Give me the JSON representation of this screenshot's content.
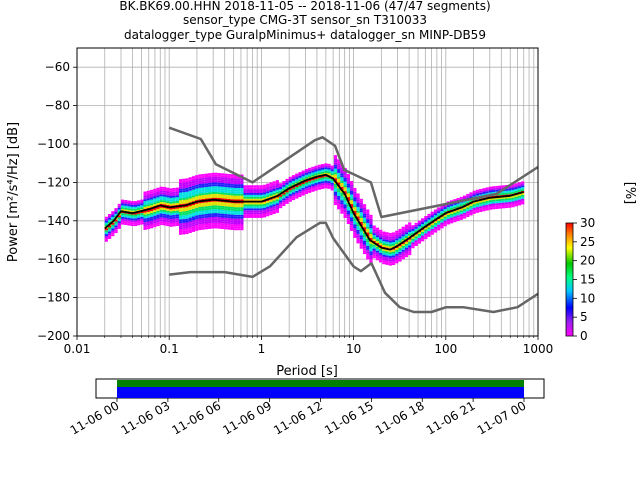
{
  "title": {
    "line1": "BK.BK69.00.HHN   2018-11-05 -- 2018-11-06  (47/47 segments)",
    "line2": "sensor_type CMG-3T sensor_sn T310033",
    "line3": "datalogger_type GuralpMinimus+ datalogger_sn MINP-DB59"
  },
  "colors": {
    "nlnm_nhnm": "#666666",
    "mean_line": "#000000",
    "coverage_top": "#008000",
    "coverage_bottom": "#0000ff"
  },
  "chart_data": {
    "type": "heatmap",
    "xscale": "log",
    "xlabel": "Period [s]",
    "ylabel": "Power [m²/s⁴/Hz] [dB]",
    "xlim": [
      0.01,
      1000
    ],
    "ylim": [
      -200,
      -50
    ],
    "x_tick_values": [
      0.01,
      0.1,
      1,
      10,
      100,
      1000
    ],
    "x_tick_labels": [
      "0.01",
      "0.1",
      "1",
      "10",
      "100",
      "1000"
    ],
    "y_tick_values": [
      -200,
      -180,
      -160,
      -140,
      -120,
      -100,
      -80,
      -60
    ],
    "y_tick_labels": [
      "−200",
      "−180",
      "−160",
      "−140",
      "−120",
      "−100",
      "−80",
      "−60"
    ],
    "grid": true,
    "nhnm": {
      "x": [
        0.1,
        0.22,
        0.32,
        0.8,
        3.8,
        4.6,
        6.3,
        7.9,
        15.4,
        20,
        354.8,
        1000
      ],
      "y": [
        -91.5,
        -97.4,
        -110.5,
        -120,
        -98,
        -96.5,
        -101,
        -113.5,
        -120,
        -138,
        -126,
        -112
      ]
    },
    "nlnm": {
      "x": [
        0.1,
        0.17,
        0.4,
        0.8,
        1.24,
        2.4,
        4.3,
        5,
        6,
        10,
        12,
        15.6,
        21.9,
        31.6,
        45,
        70,
        101,
        154,
        328,
        600,
        1000
      ],
      "y": [
        -168,
        -166.7,
        -166.7,
        -169.2,
        -163.7,
        -148.6,
        -141.1,
        -141.1,
        -149,
        -163.8,
        -166.2,
        -162.1,
        -177.5,
        -185,
        -187.5,
        -187.5,
        -185,
        -185,
        -187.5,
        -185,
        -178
      ]
    },
    "mean_line": {
      "x": [
        0.02,
        0.025,
        0.03,
        0.04,
        0.06,
        0.08,
        0.1,
        0.15,
        0.2,
        0.3,
        0.5,
        0.7,
        1,
        1.5,
        2,
        3,
        4,
        5,
        6,
        8,
        10,
        15,
        20,
        25,
        30,
        40,
        60,
        80,
        100,
        150,
        200,
        300,
        500,
        700
      ],
      "y": [
        -144,
        -140,
        -135,
        -136,
        -134,
        -132,
        -133,
        -132,
        -130,
        -129,
        -130,
        -130,
        -130,
        -127,
        -123,
        -119,
        -117,
        -116,
        -118,
        -126,
        -136,
        -150,
        -154,
        -155,
        -153,
        -149,
        -143,
        -139,
        -136,
        -133,
        -130,
        -128,
        -127,
        -125
      ]
    },
    "colorbar": {
      "label": "[%]",
      "min": 0,
      "max": 30,
      "tick_values": [
        0,
        5,
        10,
        15,
        20,
        25,
        30
      ],
      "tick_labels": [
        "0",
        "5",
        "10",
        "15",
        "20",
        "25",
        "30"
      ]
    }
  },
  "coverage": {
    "tick_labels": [
      "11-06 00",
      "11-06 03",
      "11-06 06",
      "11-06 09",
      "11-06 12",
      "11-06 15",
      "11-06 18",
      "11-06 21",
      "11-07 00"
    ]
  }
}
